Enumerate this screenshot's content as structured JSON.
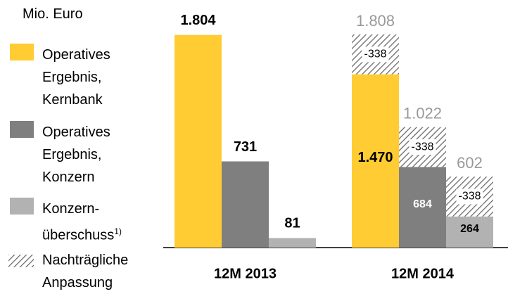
{
  "chart_data": {
    "type": "bar",
    "subtitle": "Mio. Euro",
    "categories": [
      "12M 2013",
      "12M 2014"
    ],
    "series": [
      {
        "name": "Operatives Ergebnis, Kernbank",
        "color": "#ffcc33",
        "values": [
          1804,
          1470
        ],
        "value_labels": [
          "1.804",
          "1.470"
        ],
        "adjustment": [
          null,
          -338
        ],
        "totals": [
          null,
          1808
        ],
        "total_labels": [
          null,
          "1.808"
        ]
      },
      {
        "name": "Operatives Ergebnis, Konzern",
        "color": "#7f7f7f",
        "values": [
          731,
          684
        ],
        "adjustment": [
          null,
          -338
        ],
        "totals": [
          null,
          1022
        ],
        "total_labels": [
          null,
          "1.022"
        ]
      },
      {
        "name": "Konzern-überschuss",
        "footnote": "1)",
        "color": "#b2b2b2",
        "values": [
          81,
          264
        ],
        "adjustment": [
          null,
          -338
        ],
        "totals": [
          null,
          602
        ]
      }
    ],
    "adjustment_legend": {
      "name": "Nachträgliche Anpassung",
      "color": "#666666"
    }
  }
}
